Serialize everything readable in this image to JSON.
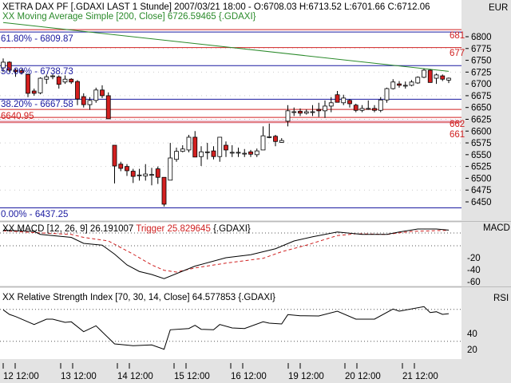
{
  "header": {
    "title": "XETRA DAX PF [.GDAXI LAST 1 Stunde] 2007/03/21 18:00 - O:6708.03 H:6713.52 L:6701.66 C:6712.06",
    "ma_label": "XX Moving Average Simple [200, Close] 6726.59465 {.GDAXI}",
    "currency": "EUR"
  },
  "colors": {
    "up": "#ffffff",
    "down": "#d42020",
    "ma": "#2a8a2a",
    "fib_blue": "#1a1aa0",
    "fib_red": "#d02020",
    "trigger": "#d02020",
    "axis_bg": "#e3e3e3"
  },
  "fib_labels": [
    "61.80% - 6809.87",
    "50.00% - 6738.73",
    "38.20% - 6667.58",
    "6640.95",
    "0.00% - 6437.25"
  ],
  "fib_levels_blue": [
    6809.87,
    6738.73,
    6667.58,
    6437.25
  ],
  "fib_levels_red": [
    6815,
    6777,
    6646,
    6629,
    6619
  ],
  "red_labels": [
    "681",
    "677",
    "662",
    "661"
  ],
  "price_axis": {
    "ticks": [
      "6800",
      "6775",
      "6750",
      "6725",
      "6700",
      "6675",
      "6650",
      "6625",
      "6600",
      "6575",
      "6550",
      "6525",
      "6500",
      "6475",
      "6450"
    ]
  },
  "macd": {
    "label": "XX MACD [12, 26, 9] 26.191007",
    "trigger_label": "Trigger 25.829645",
    "suffix": "{.GDAXI}",
    "axis_title": "MACD",
    "ticks": [
      "-20",
      "-40",
      "-60"
    ]
  },
  "rsi": {
    "label": "XX Relative Strength Index [70, 30, 14, Close] 64.577853 {.GDAXI}",
    "axis_title": "RSI",
    "ticks": [
      "40",
      "20"
    ],
    "levels": [
      70,
      30
    ]
  },
  "time_axis": [
    "12 12:00",
    "13 12:00",
    "14 12:00",
    "15 12:00",
    "16 12:00",
    "19 12:00",
    "20 12:00",
    "21 12:00"
  ],
  "chart_data": {
    "type": "candlestick",
    "ylim": [
      6430,
      6830
    ],
    "ohlc": [
      [
        6734,
        6754,
        6725,
        6746
      ],
      [
        6746,
        6748,
        6725,
        6729
      ],
      [
        6729,
        6732,
        6715,
        6726
      ],
      [
        6728,
        6732,
        6720,
        6724
      ],
      [
        6720,
        6722,
        6672,
        6680
      ],
      [
        6685,
        6690,
        6675,
        6680
      ],
      [
        6681,
        6714,
        6678,
        6712
      ],
      [
        6710,
        6720,
        6700,
        6715
      ],
      [
        6717,
        6720,
        6710,
        6717
      ],
      [
        6715,
        6718,
        6690,
        6699
      ],
      [
        6704,
        6718,
        6700,
        6710
      ],
      [
        6710,
        6712,
        6700,
        6704
      ],
      [
        6705,
        6708,
        6655,
        6668
      ],
      [
        6673,
        6680,
        6650,
        6656
      ],
      [
        6656,
        6672,
        6645,
        6665
      ],
      [
        6665,
        6692,
        6660,
        6687
      ],
      [
        6687,
        6697,
        6670,
        6675
      ],
      [
        6675,
        6682,
        6626,
        6626
      ],
      [
        6570,
        6570,
        6489,
        6526
      ],
      [
        6530,
        6535,
        6515,
        6521
      ],
      [
        6525,
        6530,
        6505,
        6516
      ],
      [
        6515,
        6520,
        6490,
        6504
      ],
      [
        6507,
        6520,
        6495,
        6507
      ],
      [
        6505,
        6530,
        6495,
        6509
      ],
      [
        6508,
        6522,
        6485,
        6508
      ],
      [
        6520,
        6525,
        6488,
        6502
      ],
      [
        6502,
        6502,
        6440,
        6445
      ],
      [
        6496,
        6575,
        6496,
        6543
      ],
      [
        6540,
        6565,
        6535,
        6557
      ],
      [
        6557,
        6570,
        6555,
        6562
      ],
      [
        6560,
        6592,
        6555,
        6587
      ],
      [
        6587,
        6600,
        6545,
        6545
      ],
      [
        6546,
        6568,
        6526,
        6556
      ],
      [
        6556,
        6575,
        6540,
        6556
      ],
      [
        6558,
        6568,
        6540,
        6546
      ],
      [
        6546,
        6587,
        6535,
        6587
      ],
      [
        6570,
        6578,
        6545,
        6560
      ],
      [
        6555,
        6570,
        6545,
        6555
      ],
      [
        6555,
        6565,
        6545,
        6555
      ],
      [
        6553,
        6562,
        6545,
        6553
      ],
      [
        6556,
        6560,
        6545,
        6551
      ],
      [
        6550,
        6563,
        6545,
        6558
      ],
      [
        6560,
        6610,
        6560,
        6590
      ],
      [
        6588,
        6616,
        6585,
        6588
      ],
      [
        6589,
        6592,
        6568,
        6578
      ],
      [
        6576,
        6585,
        6575,
        6580
      ],
      [
        6621,
        6655,
        6610,
        6643
      ],
      [
        6641,
        6650,
        6632,
        6641
      ],
      [
        6642,
        6648,
        6632,
        6638
      ],
      [
        6638,
        6646,
        6635,
        6641
      ],
      [
        6641,
        6655,
        6632,
        6641
      ],
      [
        6646,
        6660,
        6630,
        6643
      ],
      [
        6643,
        6665,
        6628,
        6653
      ],
      [
        6653,
        6672,
        6640,
        6660
      ],
      [
        6677,
        6685,
        6661,
        6661
      ],
      [
        6660,
        6677,
        6655,
        6670
      ],
      [
        6665,
        6668,
        6650,
        6658
      ],
      [
        6655,
        6658,
        6640,
        6644
      ],
      [
        6644,
        6655,
        6640,
        6648
      ],
      [
        6648,
        6665,
        6645,
        6648
      ],
      [
        6648,
        6655,
        6640,
        6644
      ],
      [
        6644,
        6672,
        6640,
        6666
      ],
      [
        6666,
        6692,
        6660,
        6690
      ],
      [
        6690,
        6710,
        6688,
        6704
      ],
      [
        6700,
        6706,
        6692,
        6697
      ],
      [
        6697,
        6705,
        6690,
        6697
      ],
      [
        6697,
        6708,
        6695,
        6704
      ],
      [
        6702,
        6716,
        6700,
        6714
      ],
      [
        6714,
        6732,
        6712,
        6729
      ],
      [
        6729,
        6731,
        6703,
        6703
      ],
      [
        6712,
        6722,
        6700,
        6719
      ],
      [
        6717,
        6720,
        6706,
        6710
      ],
      [
        6708.03,
        6713.52,
        6701.66,
        6712.06
      ]
    ],
    "ma_200": [
      [
        0,
        6830
      ],
      [
        72,
        6726.59
      ]
    ],
    "macd_series": [
      [
        0,
        26
      ],
      [
        5,
        24
      ],
      [
        6,
        19
      ],
      [
        11,
        14
      ],
      [
        13,
        4
      ],
      [
        16,
        1
      ],
      [
        18,
        -14
      ],
      [
        20,
        -32
      ],
      [
        22,
        -43
      ],
      [
        24,
        -48
      ],
      [
        26,
        -55
      ],
      [
        31,
        -34
      ],
      [
        36,
        -20
      ],
      [
        40,
        -15
      ],
      [
        44,
        -5
      ],
      [
        47,
        8
      ],
      [
        50,
        15
      ],
      [
        54,
        23
      ],
      [
        58,
        19
      ],
      [
        62,
        19
      ],
      [
        64,
        23
      ],
      [
        67,
        28
      ],
      [
        70,
        28
      ],
      [
        72,
        26.19
      ]
    ],
    "trigger_series": [
      [
        0,
        25
      ],
      [
        5,
        22
      ],
      [
        11,
        19
      ],
      [
        13,
        14
      ],
      [
        17,
        8
      ],
      [
        21,
        -14
      ],
      [
        24,
        -32
      ],
      [
        26,
        -41
      ],
      [
        28,
        -44
      ],
      [
        31,
        -37
      ],
      [
        36,
        -29
      ],
      [
        42,
        -21
      ],
      [
        45,
        -10
      ],
      [
        49,
        1
      ],
      [
        54,
        17
      ],
      [
        57,
        20
      ],
      [
        62,
        19
      ],
      [
        66,
        24
      ],
      [
        72,
        25.83
      ]
    ],
    "rsi_series": [
      [
        0,
        69.4
      ],
      [
        1,
        63.7
      ],
      [
        2,
        61
      ],
      [
        5,
        51
      ],
      [
        7,
        57.7
      ],
      [
        8,
        57.7
      ],
      [
        10,
        53.7
      ],
      [
        11,
        54.4
      ],
      [
        13,
        42
      ],
      [
        15,
        49.4
      ],
      [
        18,
        26.7
      ],
      [
        21,
        24.4
      ],
      [
        24,
        25.4
      ],
      [
        26,
        20
      ],
      [
        27,
        44.4
      ],
      [
        30,
        46
      ],
      [
        31,
        50
      ],
      [
        32,
        45
      ],
      [
        34,
        44.4
      ],
      [
        35,
        51
      ],
      [
        37,
        46.7
      ],
      [
        39,
        46
      ],
      [
        42,
        54.4
      ],
      [
        43,
        52.7
      ],
      [
        45,
        51.7
      ],
      [
        46,
        63.4
      ],
      [
        48,
        62
      ],
      [
        51,
        61.7
      ],
      [
        54,
        67.7
      ],
      [
        57,
        57.7
      ],
      [
        60,
        57.7
      ],
      [
        63,
        70.4
      ],
      [
        64,
        67.7
      ],
      [
        68,
        73.4
      ],
      [
        69,
        66
      ],
      [
        70,
        67
      ],
      [
        71,
        63.7
      ],
      [
        72,
        64.58
      ]
    ]
  }
}
